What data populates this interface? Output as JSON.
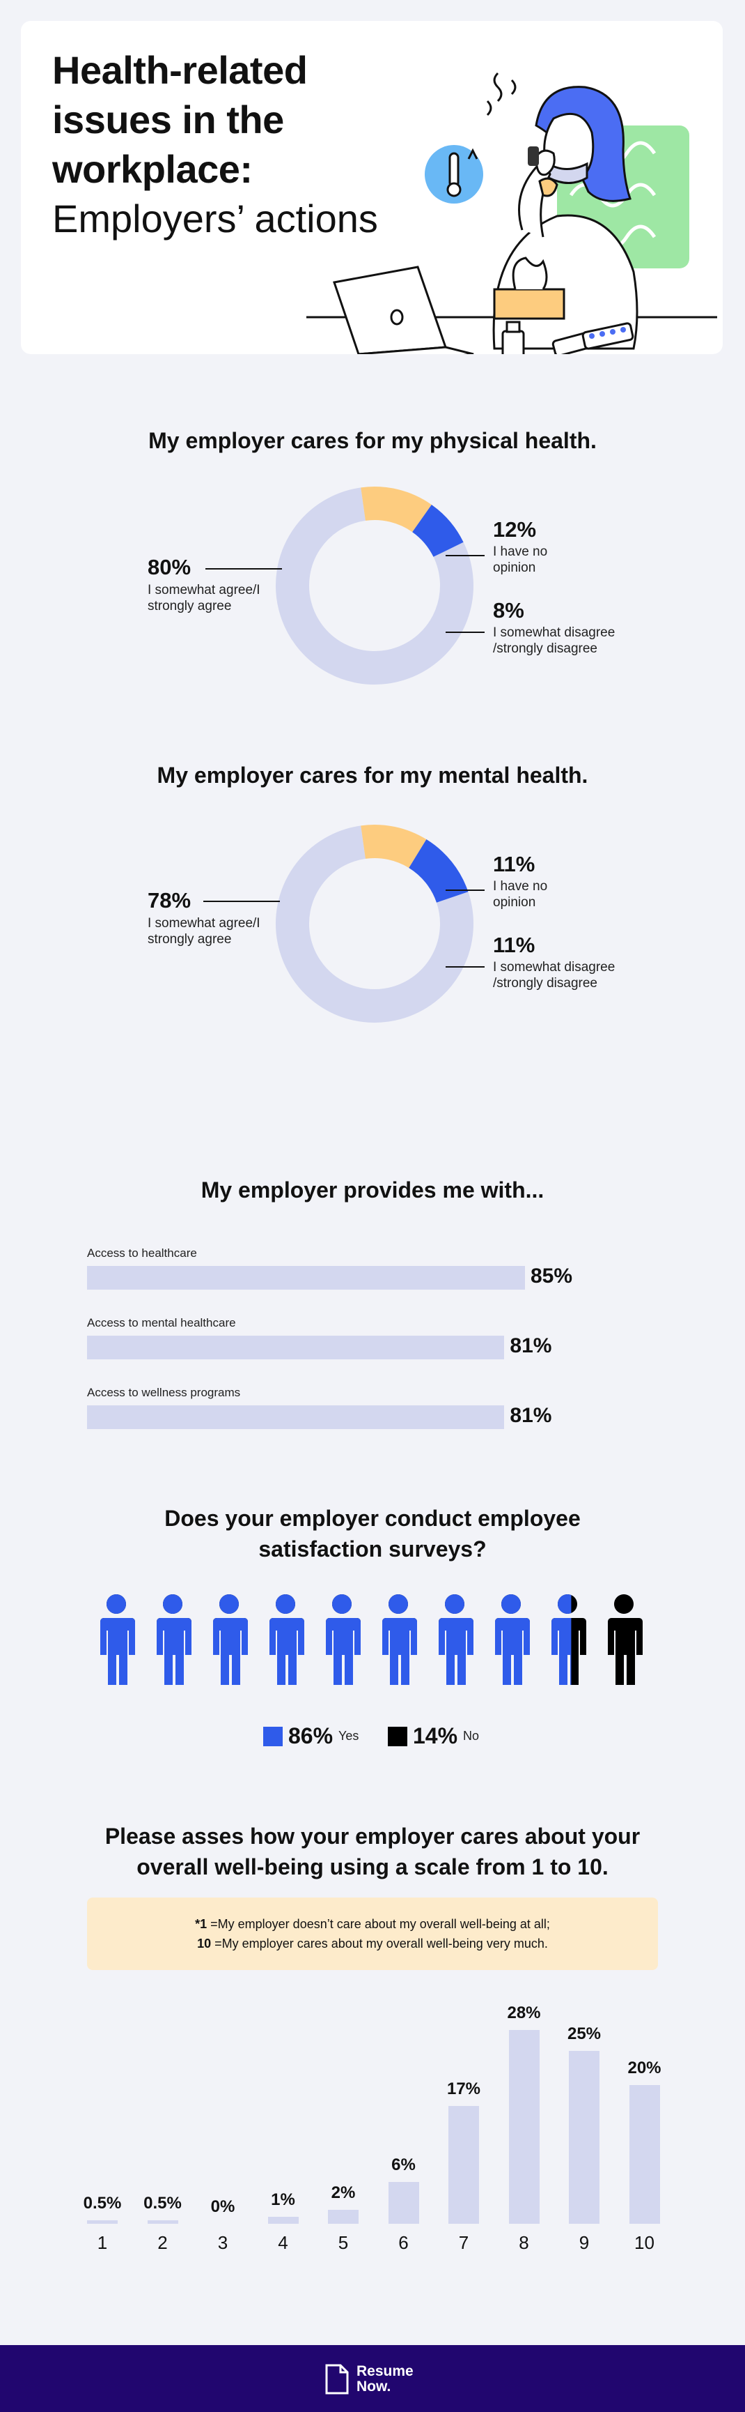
{
  "hero": {
    "title_bold": "Health-related issues in the workplace:",
    "title_light": "Employers’ actions"
  },
  "colors": {
    "background": "#F2F3F8",
    "lavender": "#D3D7EF",
    "yellow": "#FDCC7F",
    "blue": "#2F5BEA",
    "black": "#000000",
    "footer": "#21066F",
    "note_bg": "#FDEBCB"
  },
  "chart_data": [
    {
      "type": "pie",
      "title": "My employer cares for my physical health.",
      "slices": [
        {
          "label": "I somewhat agree/I strongly agree",
          "value": 80,
          "value_text": "80%",
          "color": "#D3D7EF"
        },
        {
          "label": "I have no opinion",
          "value": 12,
          "value_text": "12%",
          "color": "#FDCC7F"
        },
        {
          "label": "I somewhat disagree /strongly disagree",
          "value": 8,
          "value_text": "8%",
          "color": "#2F5BEA"
        }
      ]
    },
    {
      "type": "pie",
      "title": "My employer cares for my mental health.",
      "slices": [
        {
          "label": "I somewhat agree/I strongly agree",
          "value": 78,
          "value_text": "78%",
          "color": "#D3D7EF"
        },
        {
          "label": "I have no opinion",
          "value": 11,
          "value_text": "11%",
          "color": "#FDCC7F"
        },
        {
          "label": "I somewhat disagree /strongly disagree",
          "value": 11,
          "value_text": "11%",
          "color": "#2F5BEA"
        }
      ]
    },
    {
      "type": "bar",
      "orientation": "horizontal",
      "title": "My employer provides me with...",
      "categories": [
        "Access to healthcare",
        "Access to mental healthcare",
        "Access to wellness programs"
      ],
      "values": [
        85,
        81,
        81
      ],
      "value_labels": [
        "85%",
        "81%",
        "81%"
      ]
    },
    {
      "type": "pie",
      "subtype": "pictogram",
      "title": "Does your employer conduct employee satisfaction surveys?",
      "slices": [
        {
          "label": "Yes",
          "value": 86,
          "value_text": "86%",
          "color": "#2F5BEA"
        },
        {
          "label": "No",
          "value": 14,
          "value_text": "14%",
          "color": "#000000"
        }
      ],
      "icon_count": 10
    },
    {
      "type": "bar",
      "title": "Please asses how your employer cares about your overall well-being using a scale from 1 to 10.",
      "categories": [
        "1",
        "2",
        "3",
        "4",
        "5",
        "6",
        "7",
        "8",
        "9",
        "10"
      ],
      "values": [
        0.5,
        0.5,
        0,
        1,
        2,
        6,
        17,
        28,
        25,
        20
      ],
      "value_labels": [
        "0.5%",
        "0.5%",
        "0%",
        "1%",
        "2%",
        "6%",
        "17%",
        "28%",
        "25%",
        "20%"
      ],
      "note": {
        "line1_key": "*1",
        "line1_text": " =My employer doesn’t care about my overall well-being at all;",
        "line2_key": "10",
        "line2_text": " =My employer cares about my overall well-being very much."
      }
    }
  ],
  "footer": {
    "logo_line1": "Resume",
    "logo_line2": "Now."
  }
}
